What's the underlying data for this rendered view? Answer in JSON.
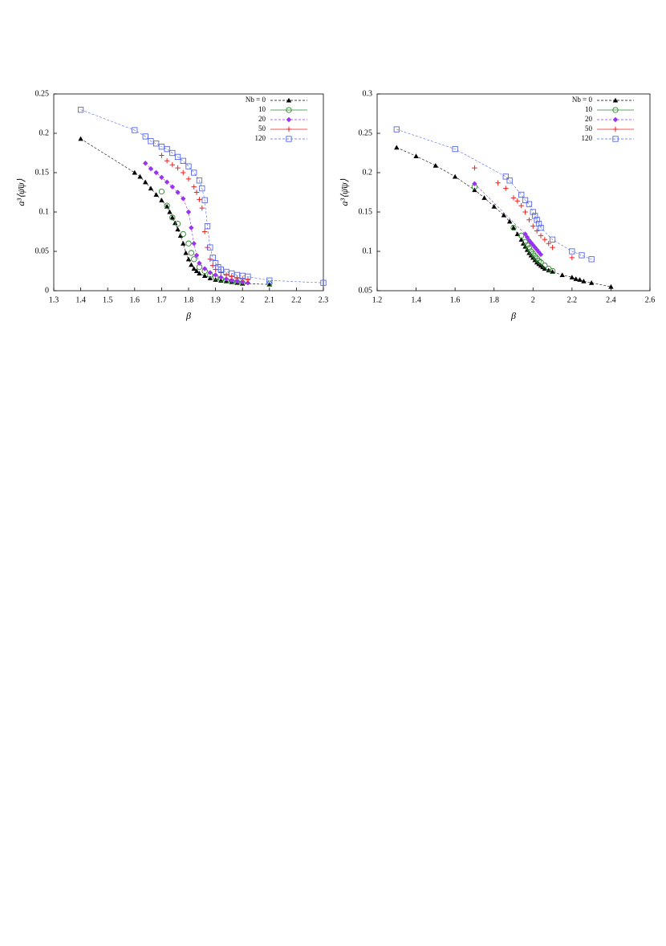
{
  "chart_data": [
    {
      "type": "scatter",
      "x_label": "β",
      "y_label": "a³⟨ψ̄ψ⟩",
      "xlim": [
        1.3,
        2.3
      ],
      "xticks": [
        1.3,
        1.4,
        1.5,
        1.6,
        1.7,
        1.8,
        1.9,
        2,
        2.1,
        2.2,
        2.3
      ],
      "ylim": [
        0,
        0.25
      ],
      "yticks": [
        0,
        0.05,
        0.1,
        0.15,
        0.2,
        0.25
      ],
      "legend": "upper right",
      "series": [
        {
          "name": "Nb = 0",
          "color": "#000000",
          "marker": "triangle",
          "line": true,
          "x": [
            1.4,
            1.6,
            1.62,
            1.64,
            1.66,
            1.68,
            1.7,
            1.72,
            1.73,
            1.74,
            1.75,
            1.76,
            1.77,
            1.78,
            1.79,
            1.8,
            1.81,
            1.82,
            1.83,
            1.84,
            1.86,
            1.88,
            1.9,
            1.92,
            1.94,
            1.96,
            1.98,
            2.0,
            2.1
          ],
          "values": [
            0.193,
            0.15,
            0.145,
            0.138,
            0.13,
            0.122,
            0.115,
            0.107,
            0.1,
            0.093,
            0.086,
            0.078,
            0.07,
            0.06,
            0.048,
            0.04,
            0.033,
            0.028,
            0.025,
            0.022,
            0.019,
            0.016,
            0.014,
            0.013,
            0.012,
            0.011,
            0.01,
            0.009,
            0.008
          ]
        },
        {
          "name": "10",
          "color": "#2a8a2a",
          "marker": "circle",
          "line": false,
          "x": [
            1.7,
            1.72,
            1.74,
            1.76,
            1.78,
            1.8,
            1.81,
            1.82,
            1.84,
            1.86,
            1.88,
            1.9,
            1.92,
            1.94,
            1.96,
            1.98,
            2.0,
            2.1
          ],
          "values": [
            0.126,
            0.108,
            0.093,
            0.085,
            0.072,
            0.06,
            0.048,
            0.04,
            0.03,
            0.025,
            0.02,
            0.017,
            0.015,
            0.013,
            0.012,
            0.011,
            0.01,
            0.009
          ]
        },
        {
          "name": "20",
          "color": "#9933ee",
          "marker": "diamond",
          "line": true,
          "x": [
            1.64,
            1.66,
            1.68,
            1.7,
            1.72,
            1.74,
            1.76,
            1.78,
            1.8,
            1.81,
            1.82,
            1.83,
            1.84,
            1.86,
            1.88,
            1.9,
            1.92,
            1.94,
            1.96,
            1.98,
            2.0,
            2.02
          ],
          "values": [
            0.162,
            0.155,
            0.15,
            0.144,
            0.138,
            0.132,
            0.125,
            0.117,
            0.1,
            0.08,
            0.06,
            0.045,
            0.035,
            0.028,
            0.023,
            0.02,
            0.017,
            0.015,
            0.013,
            0.012,
            0.011,
            0.01
          ]
        },
        {
          "name": "50",
          "color": "#ee2222",
          "marker": "plus",
          "line": false,
          "x": [
            1.7,
            1.72,
            1.74,
            1.76,
            1.78,
            1.8,
            1.82,
            1.83,
            1.84,
            1.85,
            1.86,
            1.87,
            1.88,
            1.89,
            1.9,
            1.92,
            1.94,
            1.96,
            1.98,
            2.0,
            2.02
          ],
          "values": [
            0.172,
            0.165,
            0.16,
            0.156,
            0.15,
            0.142,
            0.132,
            0.125,
            0.116,
            0.105,
            0.075,
            0.055,
            0.04,
            0.032,
            0.027,
            0.023,
            0.02,
            0.018,
            0.016,
            0.015,
            0.014
          ]
        },
        {
          "name": "120",
          "color": "#5566ee",
          "marker": "square",
          "line": true,
          "x": [
            1.4,
            1.6,
            1.64,
            1.66,
            1.68,
            1.7,
            1.72,
            1.74,
            1.76,
            1.78,
            1.8,
            1.82,
            1.84,
            1.85,
            1.86,
            1.87,
            1.88,
            1.89,
            1.9,
            1.91,
            1.92,
            1.94,
            1.96,
            1.98,
            2.0,
            2.02,
            2.1,
            2.3
          ],
          "values": [
            0.23,
            0.204,
            0.196,
            0.19,
            0.187,
            0.183,
            0.18,
            0.175,
            0.17,
            0.165,
            0.158,
            0.15,
            0.14,
            0.13,
            0.115,
            0.082,
            0.055,
            0.042,
            0.035,
            0.03,
            0.027,
            0.024,
            0.022,
            0.02,
            0.019,
            0.018,
            0.013,
            0.01
          ]
        }
      ]
    },
    {
      "type": "scatter",
      "x_label": "β",
      "y_label": "a³⟨ψ̄ψ⟩",
      "xlim": [
        1.2,
        2.6
      ],
      "xticks": [
        1.2,
        1.4,
        1.6,
        1.8,
        2,
        2.2,
        2.4,
        2.6
      ],
      "ylim": [
        0.05,
        0.3
      ],
      "yticks": [
        0.05,
        0.1,
        0.15,
        0.2,
        0.25,
        0.3
      ],
      "legend": "upper right",
      "series": [
        {
          "name": "Nb = 0",
          "color": "#000000",
          "marker": "triangle",
          "line": true,
          "x": [
            1.3,
            1.4,
            1.5,
            1.6,
            1.7,
            1.75,
            1.8,
            1.85,
            1.88,
            1.9,
            1.92,
            1.94,
            1.95,
            1.96,
            1.97,
            1.98,
            1.99,
            2.0,
            2.01,
            2.02,
            2.03,
            2.04,
            2.05,
            2.06,
            2.08,
            2.1,
            2.15,
            2.2,
            2.22,
            2.24,
            2.26,
            2.3,
            2.4
          ],
          "values": [
            0.232,
            0.221,
            0.209,
            0.195,
            0.178,
            0.168,
            0.157,
            0.146,
            0.138,
            0.13,
            0.122,
            0.115,
            0.11,
            0.106,
            0.102,
            0.098,
            0.095,
            0.092,
            0.089,
            0.086,
            0.084,
            0.082,
            0.08,
            0.078,
            0.076,
            0.074,
            0.07,
            0.067,
            0.065,
            0.064,
            0.062,
            0.06,
            0.055
          ]
        },
        {
          "name": "10",
          "color": "#2a8a2a",
          "marker": "circle",
          "line": false,
          "x": [
            1.7,
            1.9,
            1.94,
            1.96,
            1.97,
            1.98,
            1.99,
            2.0,
            2.01,
            2.02,
            2.03,
            2.04,
            2.06,
            2.08,
            2.1
          ],
          "values": [
            0.182,
            0.13,
            0.12,
            0.112,
            0.108,
            0.104,
            0.1,
            0.097,
            0.094,
            0.091,
            0.088,
            0.086,
            0.082,
            0.078,
            0.075
          ]
        },
        {
          "name": "20",
          "color": "#9933ee",
          "marker": "diamond",
          "line": true,
          "x": [
            1.7,
            1.96,
            1.97,
            1.98,
            1.99,
            2.0,
            2.01,
            2.02,
            2.03,
            2.04
          ],
          "values": [
            0.186,
            0.122,
            0.118,
            0.114,
            0.111,
            0.108,
            0.105,
            0.102,
            0.099,
            0.096
          ]
        },
        {
          "name": "50",
          "color": "#ee2222",
          "marker": "plus",
          "line": false,
          "x": [
            1.7,
            1.82,
            1.86,
            1.9,
            1.92,
            1.94,
            1.96,
            1.98,
            2.0,
            2.02,
            2.04,
            2.06,
            2.08,
            2.1,
            2.2
          ],
          "values": [
            0.206,
            0.187,
            0.18,
            0.168,
            0.164,
            0.158,
            0.15,
            0.14,
            0.132,
            0.126,
            0.12,
            0.115,
            0.11,
            0.105,
            0.092
          ]
        },
        {
          "name": "120",
          "color": "#5566ee",
          "marker": "square",
          "line": true,
          "x": [
            1.3,
            1.6,
            1.86,
            1.88,
            1.94,
            1.96,
            1.98,
            2.0,
            2.01,
            2.02,
            2.03,
            2.04,
            2.1,
            2.2,
            2.25,
            2.3
          ],
          "values": [
            0.255,
            0.23,
            0.195,
            0.19,
            0.172,
            0.165,
            0.16,
            0.15,
            0.145,
            0.14,
            0.135,
            0.13,
            0.115,
            0.1,
            0.095,
            0.09
          ]
        }
      ]
    }
  ]
}
